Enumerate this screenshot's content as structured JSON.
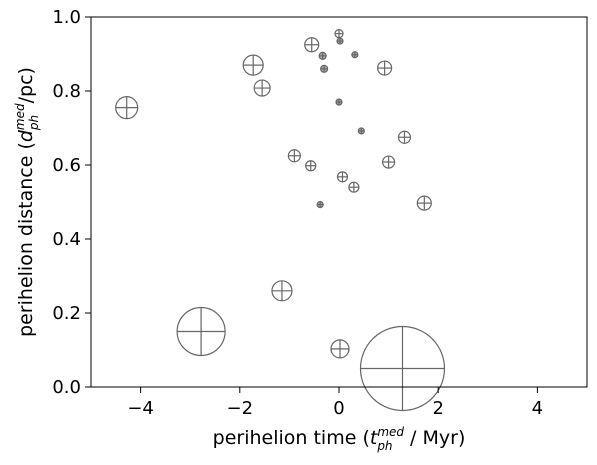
{
  "chart_data": {
    "type": "scatter",
    "title": "",
    "xlabel": {
      "prefix": "perihelion time (",
      "symbol": "t",
      "superscript": "med",
      "subscript": "ph",
      "suffix": " / Myr)"
    },
    "ylabel": {
      "prefix": "perihelion distance (",
      "symbol": "d",
      "superscript": "med",
      "subscript": "ph",
      "suffix": "/pc)"
    },
    "xlim": [
      -5,
      5
    ],
    "ylim": [
      0.0,
      1.0
    ],
    "x_ticks": [
      -4,
      -2,
      0,
      2,
      4
    ],
    "x_tick_labels": [
      "−4",
      "−2",
      "0",
      "2",
      "4"
    ],
    "y_ticks": [
      0.0,
      0.2,
      0.4,
      0.6,
      0.8,
      1.0
    ],
    "y_tick_labels": [
      "0.0",
      "0.2",
      "0.4",
      "0.6",
      "0.8",
      "1.0"
    ],
    "grid": false,
    "legend": "none",
    "marker": "circle with cross",
    "marker_color": "#666666",
    "points": [
      {
        "x": 1.28,
        "y": 0.05,
        "size": 4.2
      },
      {
        "x": -2.78,
        "y": 0.15,
        "size": 2.4
      },
      {
        "x": -4.28,
        "y": 0.755,
        "size": 1.1
      },
      {
        "x": -1.73,
        "y": 0.87,
        "size": 1.0
      },
      {
        "x": -1.15,
        "y": 0.26,
        "size": 1.0
      },
      {
        "x": 0.02,
        "y": 0.103,
        "size": 0.9
      },
      {
        "x": -1.55,
        "y": 0.808,
        "size": 0.8
      },
      {
        "x": -0.55,
        "y": 0.925,
        "size": 0.7
      },
      {
        "x": 0.92,
        "y": 0.862,
        "size": 0.7
      },
      {
        "x": 1.72,
        "y": 0.497,
        "size": 0.7
      },
      {
        "x": -0.9,
        "y": 0.625,
        "size": 0.6
      },
      {
        "x": 1.32,
        "y": 0.675,
        "size": 0.6
      },
      {
        "x": 1.0,
        "y": 0.608,
        "size": 0.6
      },
      {
        "x": -0.57,
        "y": 0.598,
        "size": 0.5
      },
      {
        "x": 0.07,
        "y": 0.568,
        "size": 0.5
      },
      {
        "x": 0.3,
        "y": 0.54,
        "size": 0.5
      },
      {
        "x": 0.0,
        "y": 0.955,
        "size": 0.4
      },
      {
        "x": 0.02,
        "y": 0.935,
        "size": 0.3
      },
      {
        "x": -0.33,
        "y": 0.895,
        "size": 0.35
      },
      {
        "x": 0.32,
        "y": 0.898,
        "size": 0.3
      },
      {
        "x": -0.3,
        "y": 0.86,
        "size": 0.35
      },
      {
        "x": 0.0,
        "y": 0.77,
        "size": 0.3
      },
      {
        "x": 0.45,
        "y": 0.692,
        "size": 0.3
      },
      {
        "x": -0.38,
        "y": 0.493,
        "size": 0.3
      }
    ]
  }
}
